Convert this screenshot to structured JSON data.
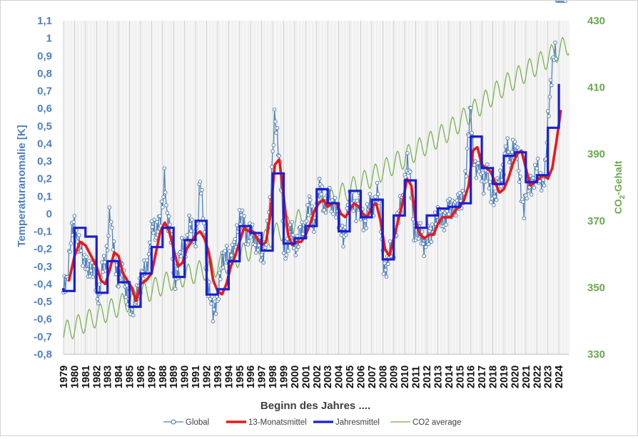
{
  "chart_data": {
    "type": "line",
    "xlabel": "Beginn des Jahres ....",
    "ylabel_left": "Temperaturanomalie [K]",
    "ylabel_right_main": "CO",
    "ylabel_right_sub": "2",
    "ylabel_right_rest": "-Gehalt",
    "x_range": [
      1979,
      2024.9
    ],
    "y_left_range": [
      -0.8,
      1.1
    ],
    "y_right_range": [
      330,
      430
    ],
    "x_ticks": [
      "1979",
      "1980",
      "1981",
      "1982",
      "1983",
      "1984",
      "1985",
      "1986",
      "1987",
      "1988",
      "1989",
      "1990",
      "1991",
      "1992",
      "1993",
      "1994",
      "1995",
      "1996",
      "1997",
      "1998",
      "1999",
      "2000",
      "2001",
      "2002",
      "2003",
      "2004",
      "2005",
      "2006",
      "2007",
      "2008",
      "2009",
      "2010",
      "2011",
      "2012",
      "2013",
      "2014",
      "2015",
      "2016",
      "2017",
      "2018",
      "2019",
      "2020",
      "2021",
      "2022",
      "2023",
      "2024"
    ],
    "y_left_ticks": [
      "-0,8",
      "-0,7",
      "-0,6",
      "-0,5",
      "-0,4",
      "-0,3",
      "-0,2",
      "-0,1",
      "0",
      "0,1",
      "0,2",
      "0,3",
      "0,4",
      "0,5",
      "0,6",
      "0,7",
      "0,8",
      "0,9",
      "1",
      "1,1"
    ],
    "y_right_ticks": [
      "330",
      "350",
      "370",
      "390",
      "410",
      "430"
    ],
    "grid": "vertical-monthly-and-yearly",
    "legend_position": "bottom",
    "colors": {
      "global": "#4f81bd",
      "global_marker": "#4a76b0",
      "monthly13": "#e8191a",
      "annual": "#1a1fd4",
      "co2": "#70ad47",
      "left_axis_text": "#4f7fbf",
      "right_axis_text": "#6aa84f"
    },
    "series": [
      {
        "name": "Global",
        "kind": "monthly-anomaly",
        "anchors_x": [
          1979.0,
          1979.1,
          1979.3,
          1979.6,
          1979.8,
          1980.0,
          1980.2,
          1980.4,
          1980.6,
          1980.8,
          1981.0,
          1981.2,
          1981.4,
          1981.6,
          1981.8,
          1982.0,
          1982.2,
          1982.4,
          1982.6,
          1982.8,
          1983.0,
          1983.2,
          1983.4,
          1983.6,
          1983.8,
          1984.0,
          1984.2,
          1984.4,
          1984.6,
          1984.8,
          1985.0,
          1985.2,
          1985.4,
          1985.6,
          1985.8,
          1986.0,
          1986.2,
          1986.4,
          1986.6,
          1986.8,
          1987.0,
          1987.2,
          1987.4,
          1987.6,
          1987.8,
          1988.0,
          1988.2,
          1988.4,
          1988.6,
          1988.8,
          1989.0,
          1989.2,
          1989.4,
          1989.6,
          1989.8,
          1990.0,
          1990.2,
          1990.4,
          1990.6,
          1990.8,
          1991.0,
          1991.2,
          1991.4,
          1991.6,
          1991.8,
          1992.0,
          1992.2,
          1992.4,
          1992.6,
          1992.8,
          1993.0,
          1993.2,
          1993.4,
          1993.6,
          1993.8,
          1994.0,
          1994.2,
          1994.4,
          1994.6,
          1994.8,
          1995.0,
          1995.2,
          1995.4,
          1995.6,
          1995.8,
          1996.0,
          1996.2,
          1996.4,
          1996.6,
          1996.8,
          1997.0,
          1997.2,
          1997.4,
          1997.6,
          1997.8,
          1998.0,
          1998.2,
          1998.4,
          1998.6,
          1998.8,
          1999.0,
          1999.2,
          1999.4,
          1999.6,
          1999.8,
          2000.0,
          2000.2,
          2000.4,
          2000.6,
          2000.8,
          2001.0,
          2001.2,
          2001.4,
          2001.6,
          2001.8,
          2002.0,
          2002.2,
          2002.4,
          2002.6,
          2002.8,
          2003.0,
          2003.2,
          2003.4,
          2003.6,
          2003.8,
          2004.0,
          2004.2,
          2004.4,
          2004.6,
          2004.8,
          2005.0,
          2005.2,
          2005.4,
          2005.6,
          2005.8,
          2006.0,
          2006.2,
          2006.4,
          2006.6,
          2006.8,
          2007.0,
          2007.2,
          2007.4,
          2007.6,
          2007.8,
          2008.0,
          2008.2,
          2008.4,
          2008.6,
          2008.8,
          2009.0,
          2009.2,
          2009.4,
          2009.6,
          2009.8,
          2010.0,
          2010.2,
          2010.4,
          2010.6,
          2010.8,
          2011.0,
          2011.2,
          2011.4,
          2011.6,
          2011.8,
          2012.0,
          2012.2,
          2012.4,
          2012.6,
          2012.8,
          2013.0,
          2013.2,
          2013.4,
          2013.6,
          2013.8,
          2014.0,
          2014.2,
          2014.4,
          2014.6,
          2014.8,
          2015.0,
          2015.2,
          2015.4,
          2015.6,
          2015.8,
          2016.0,
          2016.2,
          2016.4,
          2016.6,
          2016.8,
          2017.0,
          2017.2,
          2017.4,
          2017.6,
          2017.8,
          2018.0,
          2018.2,
          2018.4,
          2018.6,
          2018.8,
          2019.0,
          2019.2,
          2019.4,
          2019.6,
          2019.8,
          2020.0,
          2020.2,
          2020.4,
          2020.6,
          2020.8,
          2021.0,
          2021.2,
          2021.4,
          2021.6,
          2021.8,
          2022.0,
          2022.2,
          2022.4,
          2022.6,
          2022.8,
          2023.0,
          2023.2,
          2023.4,
          2023.6,
          2023.8,
          2024.0,
          2024.2,
          2024.4,
          2024.6
        ],
        "anchors_y": [
          -0.48,
          -0.4,
          -0.36,
          -0.18,
          -0.12,
          -0.06,
          -0.12,
          -0.15,
          -0.22,
          -0.3,
          -0.25,
          -0.28,
          -0.32,
          -0.36,
          -0.3,
          -0.42,
          -0.46,
          -0.4,
          -0.3,
          -0.28,
          -0.15,
          0.02,
          -0.14,
          -0.22,
          -0.3,
          -0.38,
          -0.32,
          -0.36,
          -0.4,
          -0.44,
          -0.48,
          -0.62,
          -0.52,
          -0.44,
          -0.4,
          -0.42,
          -0.36,
          -0.3,
          -0.28,
          -0.22,
          -0.12,
          -0.08,
          -0.1,
          -0.02,
          -0.06,
          0.02,
          0.25,
          0.0,
          -0.05,
          -0.18,
          -0.32,
          -0.36,
          -0.3,
          -0.24,
          -0.22,
          -0.18,
          -0.14,
          -0.06,
          -0.1,
          -0.16,
          -0.1,
          -0.04,
          0.18,
          0.04,
          -0.08,
          -0.32,
          -0.44,
          -0.52,
          -0.58,
          -0.48,
          -0.48,
          -0.4,
          -0.3,
          -0.22,
          -0.18,
          -0.3,
          -0.28,
          -0.22,
          -0.12,
          -0.08,
          -0.06,
          -0.04,
          -0.02,
          -0.1,
          -0.16,
          -0.12,
          -0.1,
          -0.14,
          -0.16,
          -0.2,
          -0.28,
          -0.2,
          -0.12,
          -0.04,
          0.04,
          0.34,
          0.62,
          0.46,
          0.28,
          0.12,
          -0.16,
          -0.2,
          -0.18,
          -0.12,
          -0.1,
          -0.16,
          -0.18,
          -0.14,
          -0.12,
          -0.08,
          -0.06,
          0.02,
          0.04,
          -0.02,
          -0.06,
          0.06,
          0.12,
          0.14,
          0.06,
          0.08,
          0.1,
          0.06,
          0.02,
          0.1,
          0.04,
          -0.06,
          -0.1,
          -0.12,
          -0.08,
          0.02,
          0.04,
          0.08,
          0.1,
          0.02,
          0.04,
          -0.02,
          0.0,
          -0.04,
          0.0,
          0.02,
          0.06,
          0.08,
          0.12,
          0.1,
          -0.04,
          -0.22,
          -0.3,
          -0.32,
          -0.26,
          -0.18,
          -0.16,
          -0.1,
          -0.06,
          0.04,
          0.1,
          0.2,
          0.28,
          0.22,
          0.14,
          -0.06,
          -0.12,
          -0.14,
          -0.1,
          -0.12,
          -0.18,
          -0.14,
          -0.16,
          -0.1,
          -0.06,
          -0.02,
          -0.04,
          -0.02,
          0.0,
          -0.04,
          -0.02,
          0.02,
          0.04,
          0.06,
          0.02,
          0.04,
          0.06,
          0.1,
          0.14,
          0.26,
          0.44,
          0.62,
          0.38,
          0.26,
          0.22,
          0.28,
          0.24,
          0.18,
          0.22,
          0.2,
          0.1,
          0.16,
          0.08,
          0.12,
          0.18,
          0.22,
          0.3,
          0.36,
          0.34,
          0.28,
          0.42,
          0.38,
          0.32,
          0.2,
          0.14,
          0.04,
          0.08,
          0.12,
          0.18,
          0.2,
          0.22,
          0.26,
          0.18,
          0.22,
          0.2,
          0.26,
          0.5,
          0.7,
          0.88,
          0.93,
          0.86
        ]
      },
      {
        "name": "13-Monatsmittel",
        "kind": "running-mean",
        "anchors_x": [
          1979.5,
          1980.0,
          1980.5,
          1981.0,
          1981.5,
          1982.0,
          1982.4,
          1982.8,
          1983.2,
          1983.6,
          1984.0,
          1984.4,
          1984.8,
          1985.2,
          1985.6,
          1986.0,
          1986.5,
          1987.0,
          1987.4,
          1987.8,
          1988.2,
          1988.6,
          1989.0,
          1989.4,
          1989.8,
          1990.2,
          1990.6,
          1991.0,
          1991.4,
          1991.8,
          1992.2,
          1992.6,
          1993.0,
          1993.4,
          1993.8,
          1994.2,
          1994.6,
          1995.0,
          1995.4,
          1995.8,
          1996.2,
          1996.6,
          1997.0,
          1997.4,
          1997.8,
          1998.2,
          1998.6,
          1999.0,
          1999.4,
          1999.8,
          2000.2,
          2000.6,
          2001.0,
          2001.4,
          2001.8,
          2002.2,
          2002.6,
          2003.0,
          2003.4,
          2003.8,
          2004.2,
          2004.6,
          2005.0,
          2005.4,
          2005.8,
          2006.2,
          2006.6,
          2007.0,
          2007.4,
          2007.8,
          2008.2,
          2008.6,
          2009.0,
          2009.4,
          2009.8,
          2010.2,
          2010.6,
          2011.0,
          2011.4,
          2011.8,
          2012.2,
          2012.6,
          2013.0,
          2013.4,
          2013.8,
          2014.2,
          2014.6,
          2015.0,
          2015.4,
          2015.8,
          2016.2,
          2016.6,
          2017.0,
          2017.4,
          2017.8,
          2018.2,
          2018.6,
          2019.0,
          2019.4,
          2019.8,
          2020.2,
          2020.6,
          2021.0,
          2021.4,
          2021.8,
          2022.2,
          2022.6,
          2023.0,
          2023.4,
          2023.8,
          2024.2
        ],
        "anchors_y": [
          -0.38,
          -0.24,
          -0.16,
          -0.18,
          -0.24,
          -0.3,
          -0.38,
          -0.4,
          -0.32,
          -0.22,
          -0.24,
          -0.34,
          -0.38,
          -0.42,
          -0.5,
          -0.4,
          -0.38,
          -0.34,
          -0.22,
          -0.1,
          -0.05,
          -0.1,
          -0.2,
          -0.3,
          -0.28,
          -0.2,
          -0.16,
          -0.12,
          -0.1,
          -0.14,
          -0.22,
          -0.38,
          -0.44,
          -0.46,
          -0.4,
          -0.3,
          -0.24,
          -0.16,
          -0.08,
          -0.1,
          -0.1,
          -0.14,
          -0.18,
          -0.16,
          0.0,
          0.28,
          0.31,
          0.1,
          -0.12,
          -0.18,
          -0.16,
          -0.16,
          -0.12,
          -0.06,
          0.02,
          0.06,
          0.08,
          0.04,
          0.06,
          0.06,
          0.0,
          -0.02,
          0.02,
          0.06,
          0.04,
          0.0,
          -0.02,
          0.04,
          0.06,
          -0.04,
          -0.2,
          -0.24,
          -0.14,
          -0.04,
          0.06,
          0.2,
          0.16,
          -0.04,
          -0.12,
          -0.14,
          -0.12,
          -0.12,
          -0.06,
          -0.02,
          -0.02,
          -0.02,
          0.02,
          0.04,
          0.08,
          0.16,
          0.36,
          0.38,
          0.28,
          0.26,
          0.24,
          0.18,
          0.12,
          0.14,
          0.2,
          0.28,
          0.34,
          0.36,
          0.26,
          0.16,
          0.18,
          0.2,
          0.22,
          0.2,
          0.26,
          0.42,
          0.6
        ]
      },
      {
        "name": "Jahresmittel",
        "kind": "annual-step",
        "values": [
          -0.43,
          -0.44,
          -0.08,
          -0.13,
          -0.45,
          -0.27,
          -0.39,
          -0.53,
          -0.34,
          -0.19,
          -0.08,
          -0.36,
          -0.15,
          -0.04,
          -0.46,
          -0.43,
          -0.27,
          -0.07,
          -0.11,
          -0.21,
          0.23,
          -0.17,
          -0.14,
          -0.07,
          0.14,
          0.06,
          -0.1,
          0.13,
          -0.02,
          0.08,
          -0.26,
          -0.01,
          0.19,
          -0.08,
          -0.01,
          0.03,
          0.04,
          0.06,
          0.44,
          0.26,
          0.17,
          0.33,
          0.35,
          0.18,
          0.22,
          0.49,
          0.74
        ]
      },
      {
        "name": "CO2 average",
        "kind": "co2-seasonal",
        "axis": "right",
        "anchors_x": [
          1979.0,
          1984.0,
          1989.0,
          1994.0,
          1999.0,
          2004.0,
          2009.0,
          2014.0,
          2019.0,
          2024.0,
          2024.9
        ],
        "anchors_y": [
          336.5,
          344.5,
          352.5,
          357.5,
          367.5,
          377.5,
          387.0,
          397.0,
          410.5,
          421.0,
          423.0
        ],
        "seasonal_amplitude": 3.2
      }
    ],
    "legend": [
      {
        "label": "Global",
        "style": "line-marker"
      },
      {
        "label": "13-Monatsmittel",
        "style": "thick-red"
      },
      {
        "label": "Jahresmittel",
        "style": "thick-blue"
      },
      {
        "label": "CO2 average",
        "style": "thin-green"
      }
    ]
  }
}
